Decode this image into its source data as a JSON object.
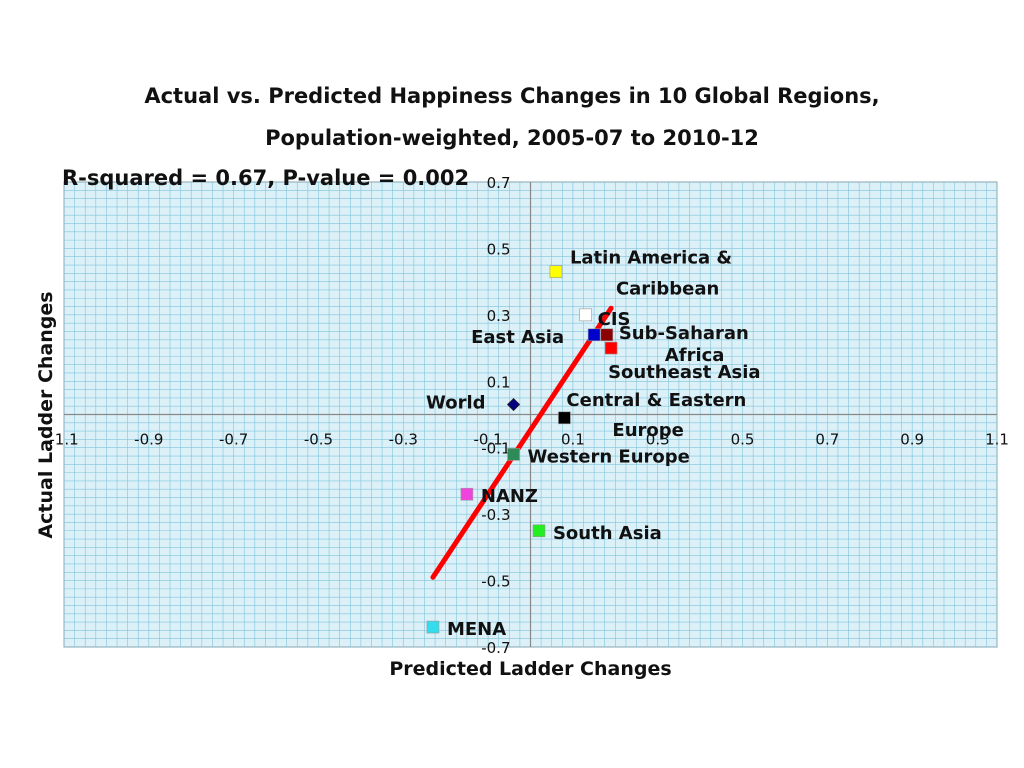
{
  "chart_data": {
    "type": "scatter",
    "title_line1": "Actual vs. Predicted Happiness Changes in 10 Global Regions,",
    "title_line2": "Population-weighted, 2005-07 to 2010-12",
    "annotation": "R-squared = 0.67, P-value = 0.002",
    "xlabel": "Predicted Ladder Changes",
    "ylabel": "Actual Ladder Changes",
    "xlim": [
      -1.1,
      1.1
    ],
    "ylim": [
      -0.7,
      0.7
    ],
    "x_ticks": [
      "-1.1",
      "-0.9",
      "-0.7",
      "-0.5",
      "-0.3",
      "-0.1",
      "0.1",
      "0.3",
      "0.5",
      "0.7",
      "0.9",
      "1.1"
    ],
    "x_tick_values": [
      -1.1,
      -0.9,
      -0.7,
      -0.5,
      -0.3,
      -0.1,
      0.1,
      0.3,
      0.5,
      0.7,
      0.9,
      1.1
    ],
    "y_ticks": [
      "0.7",
      "0.5",
      "0.3",
      "0.1",
      "-0.1",
      "-0.3",
      "-0.5",
      "-0.7"
    ],
    "y_tick_values": [
      0.7,
      0.5,
      0.3,
      0.1,
      -0.1,
      -0.3,
      -0.5,
      -0.7
    ],
    "grid": true,
    "points": [
      {
        "label": [
          "Latin America &",
          "Caribbean"
        ],
        "x": 0.06,
        "y": 0.43,
        "color": "#ffff00",
        "marker": "square"
      },
      {
        "label": [
          "CIS"
        ],
        "x": 0.13,
        "y": 0.3,
        "color": "#ffffff",
        "marker": "square"
      },
      {
        "label": [
          "East Asia"
        ],
        "x": 0.15,
        "y": 0.24,
        "color": "#0000cc",
        "marker": "square"
      },
      {
        "label": [
          "Sub-Saharan",
          "Africa"
        ],
        "x": 0.18,
        "y": 0.24,
        "color": "#8b0000",
        "marker": "square"
      },
      {
        "label": [
          "Southeast Asia"
        ],
        "x": 0.19,
        "y": 0.2,
        "color": "#ff0000",
        "marker": "square"
      },
      {
        "label": [
          "World"
        ],
        "x": -0.04,
        "y": 0.03,
        "color": "#000080",
        "marker": "diamond"
      },
      {
        "label": [
          "Central & Eastern",
          "Europe"
        ],
        "x": 0.08,
        "y": -0.01,
        "color": "#000000",
        "marker": "square"
      },
      {
        "label": [
          "Western Europe"
        ],
        "x": -0.04,
        "y": -0.12,
        "color": "#2e8b57",
        "marker": "square"
      },
      {
        "label": [
          "NANZ"
        ],
        "x": -0.15,
        "y": -0.24,
        "color": "#ee44dd",
        "marker": "square"
      },
      {
        "label": [
          "South Asia"
        ],
        "x": 0.02,
        "y": -0.35,
        "color": "#22ee22",
        "marker": "square"
      },
      {
        "label": [
          "MENA"
        ],
        "x": -0.23,
        "y": -0.64,
        "color": "#33ddee",
        "marker": "square"
      }
    ],
    "fit_line": {
      "x": [
        -0.23,
        0.19
      ],
      "y": [
        -0.49,
        0.32
      ],
      "color": "#ff0000"
    },
    "colors": {
      "plot_bg": "#dcf0f8",
      "grid": "#7fc4dc",
      "axis": "#888888"
    }
  }
}
